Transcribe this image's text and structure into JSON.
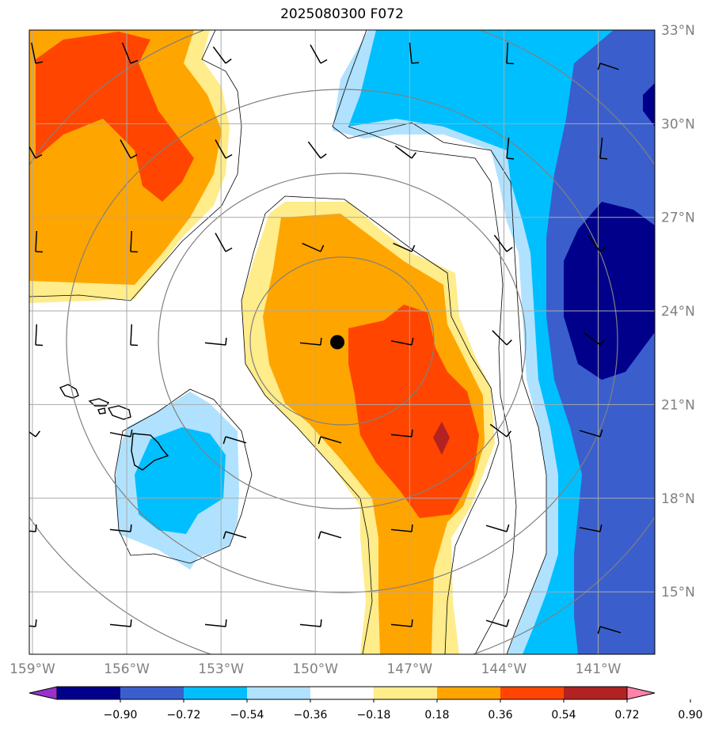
{
  "title": "2025080300 F072",
  "lat_labels": [
    "33°N",
    "30°N",
    "27°N",
    "24°N",
    "21°N",
    "18°N",
    "15°N"
  ],
  "lat_values": [
    33,
    30,
    27,
    24,
    21,
    18,
    15
  ],
  "lon_labels": [
    "159°W",
    "156°W",
    "153°W",
    "150°W",
    "147°W",
    "144°W",
    "141°W"
  ],
  "lon_values": [
    -159,
    -156,
    -153,
    -150,
    -147,
    -144,
    -141
  ],
  "extent": {
    "lon_min": -159.1,
    "lon_max": -139.2,
    "lat_min": 13.0,
    "lat_max": 33.0
  },
  "colorbar": {
    "labels": [
      "−0.90",
      "−0.72",
      "−0.54",
      "−0.36",
      "−0.18",
      "0.18",
      "0.36",
      "0.54",
      "0.72",
      "0.90"
    ],
    "colors": [
      "#9932cc",
      "#00008b",
      "#3a5fcd",
      "#00bfff",
      "#b0e2ff",
      "#ffffff",
      "#ffec8b",
      "#ffa500",
      "#ff4500",
      "#b22222",
      "#ff82ab"
    ]
  },
  "storm_center": {
    "lon": -149.3,
    "lat": 23.0
  },
  "fill_colors": {
    "orange": "#ffa500",
    "red": "#ff4500",
    "yellow": "#ffec8b",
    "darkred": "#b22222",
    "lightblue": "#b0e2ff",
    "deepsky": "#00bfff",
    "royal": "#3a5fcd",
    "navy": "#00008b"
  }
}
